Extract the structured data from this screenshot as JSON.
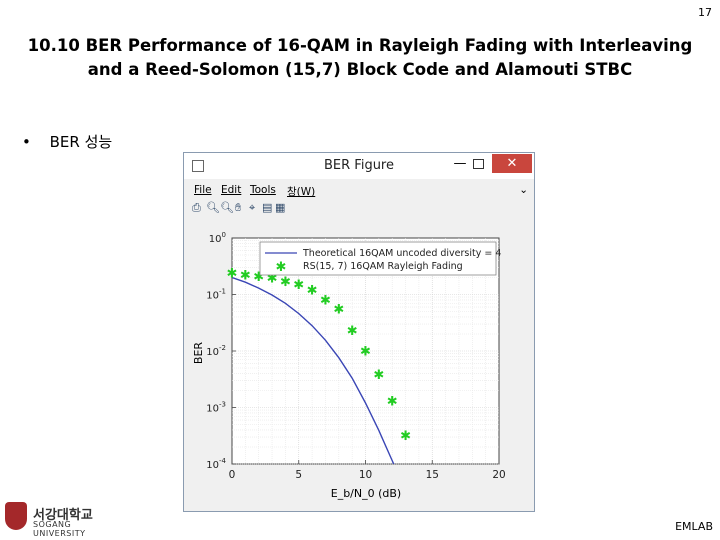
{
  "slide": {
    "page_number": "17",
    "title_line1": "10.10 BER Performance of 16-QAM in Rayleigh Fading with Interleaving",
    "title_line2": "and a Reed-Solomon (15,7) Block Code and Alamouti STBC",
    "bullet_symbol": "•",
    "bullet_text": "BER 성능",
    "footer_label": "EMLAB"
  },
  "logo": {
    "korean_name": "서강대학교",
    "english_name": "SOGANG UNIVERSITY"
  },
  "window": {
    "title": "BER Figure",
    "min_symbol": "—",
    "close_symbol": "✕",
    "menu": [
      "File",
      "Edit",
      "Tools",
      "창(W)"
    ],
    "menu_chevron": "⌄"
  },
  "colors": {
    "theory_line": "#3a46b5",
    "rs_markers": "#22cc22",
    "close_button": "#c9463d"
  },
  "chart_data": {
    "type": "line",
    "xlabel": "E_b/N_0 (dB)",
    "ylabel": "BER",
    "xlim": [
      0,
      20
    ],
    "ylim_log10": [
      -4,
      0
    ],
    "y_scale": "log",
    "xticks": [
      0,
      5,
      10,
      15,
      20
    ],
    "yticks": [
      "10^0",
      "10^-1",
      "10^-2",
      "10^-3",
      "10^-4"
    ],
    "grid": true,
    "legend_position": "top-right",
    "series": [
      {
        "name": "Theoretical 16QAM uncoded diversity = 4",
        "style": "line",
        "x": [
          0,
          1,
          2,
          3,
          4,
          5,
          6,
          7,
          8,
          9,
          10,
          11,
          12,
          13,
          14,
          15
        ],
        "y": [
          0.2,
          0.165,
          0.13,
          0.098,
          0.07,
          0.046,
          0.028,
          0.0155,
          0.0076,
          0.0033,
          0.0012,
          0.00039,
          0.000115,
          3.3e-05,
          8.8e-06,
          2.2e-06
        ]
      },
      {
        "name": "RS(15, 7) 16QAM Rayleigh Fading",
        "style": "markers",
        "x": [
          0,
          1,
          2,
          3,
          4,
          5,
          6,
          7,
          8,
          9,
          10,
          11,
          12,
          13
        ],
        "y": [
          0.24,
          0.22,
          0.21,
          0.195,
          0.17,
          0.15,
          0.12,
          0.08,
          0.055,
          0.023,
          0.01,
          0.0038,
          0.0013,
          0.00032
        ]
      }
    ]
  }
}
